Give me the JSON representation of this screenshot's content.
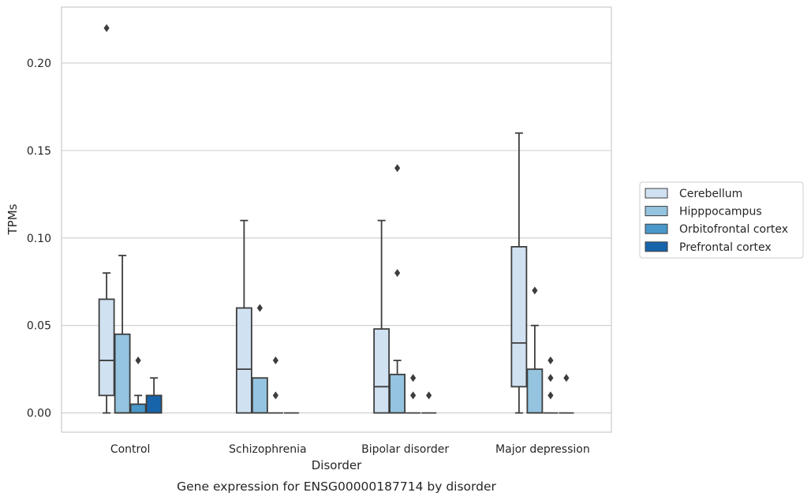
{
  "chart_data": {
    "type": "box",
    "title": "",
    "caption": "Gene expression for ENSG00000187714 by disorder",
    "xlabel": "Disorder",
    "ylabel": "TPMs",
    "ylim": [
      -0.011,
      0.232
    ],
    "yticks": [
      0.0,
      0.05,
      0.1,
      0.15,
      0.2
    ],
    "ytick_labels": [
      "0.00",
      "0.05",
      "0.10",
      "0.15",
      "0.20"
    ],
    "grid": "horizontal",
    "legend_position": "right",
    "categories": [
      "Control",
      "Schizophrenia",
      "Bipolar disorder",
      "Major depression"
    ],
    "series": [
      {
        "name": "Cerebellum",
        "color": "#d0e1f2",
        "boxes": [
          {
            "whislo": 0.0,
            "q1": 0.01,
            "med": 0.03,
            "q3": 0.065,
            "whishi": 0.08,
            "fliers": [
              0.22
            ]
          },
          {
            "whislo": 0.0,
            "q1": 0.0,
            "med": 0.025,
            "q3": 0.06,
            "whishi": 0.11,
            "fliers": []
          },
          {
            "whislo": 0.0,
            "q1": 0.0,
            "med": 0.015,
            "q3": 0.048,
            "whishi": 0.11,
            "fliers": []
          },
          {
            "whislo": 0.0,
            "q1": 0.015,
            "med": 0.04,
            "q3": 0.095,
            "whishi": 0.16,
            "fliers": []
          }
        ]
      },
      {
        "name": "Hipppocampus",
        "color": "#94c4df",
        "boxes": [
          {
            "whislo": 0.0,
            "q1": 0.0,
            "med": 0.0,
            "q3": 0.045,
            "whishi": 0.09,
            "fliers": []
          },
          {
            "whislo": 0.0,
            "q1": 0.0,
            "med": 0.0,
            "q3": 0.02,
            "whishi": 0.02,
            "fliers": [
              0.06
            ]
          },
          {
            "whislo": 0.0,
            "q1": 0.0,
            "med": 0.0,
            "q3": 0.022,
            "whishi": 0.03,
            "fliers": [
              0.08,
              0.14
            ]
          },
          {
            "whislo": 0.0,
            "q1": 0.0,
            "med": 0.0,
            "q3": 0.025,
            "whishi": 0.05,
            "fliers": [
              0.07
            ]
          }
        ]
      },
      {
        "name": "Orbitofrontal cortex",
        "color": "#4a98c9",
        "boxes": [
          {
            "whislo": 0.0,
            "q1": 0.0,
            "med": 0.0,
            "q3": 0.005,
            "whishi": 0.01,
            "fliers": [
              0.03
            ]
          },
          {
            "whislo": 0.0,
            "q1": 0.0,
            "med": 0.0,
            "q3": 0.0,
            "whishi": 0.0,
            "fliers": [
              0.01,
              0.03
            ]
          },
          {
            "whislo": 0.0,
            "q1": 0.0,
            "med": 0.0,
            "q3": 0.0,
            "whishi": 0.0,
            "fliers": [
              0.01,
              0.02
            ]
          },
          {
            "whislo": 0.0,
            "q1": 0.0,
            "med": 0.0,
            "q3": 0.0,
            "whishi": 0.0,
            "fliers": [
              0.01,
              0.02,
              0.03
            ]
          }
        ]
      },
      {
        "name": "Prefrontal cortex",
        "color": "#1764ab",
        "boxes": [
          {
            "whislo": 0.0,
            "q1": 0.0,
            "med": 0.0,
            "q3": 0.01,
            "whishi": 0.02,
            "fliers": []
          },
          {
            "whislo": 0.0,
            "q1": 0.0,
            "med": 0.0,
            "q3": 0.0,
            "whishi": 0.0,
            "fliers": []
          },
          {
            "whislo": 0.0,
            "q1": 0.0,
            "med": 0.0,
            "q3": 0.0,
            "whishi": 0.0,
            "fliers": [
              0.01
            ]
          },
          {
            "whislo": 0.0,
            "q1": 0.0,
            "med": 0.0,
            "q3": 0.0,
            "whishi": 0.0,
            "fliers": [
              0.02
            ]
          }
        ]
      }
    ]
  }
}
